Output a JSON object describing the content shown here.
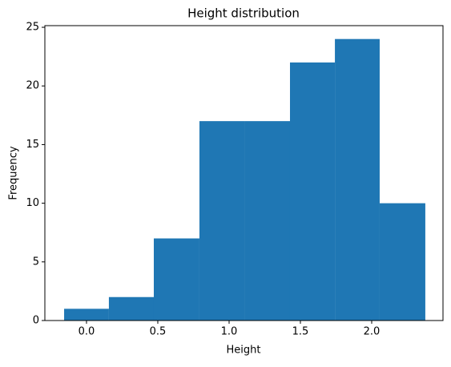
{
  "chart_data": {
    "type": "histogram",
    "title": "Height distribution",
    "x_label": "Height",
    "y_label": "Frequency",
    "bins": [
      -0.157,
      0.157,
      0.472,
      0.792,
      1.107,
      1.427,
      1.742,
      2.056,
      2.376
    ],
    "values": [
      1,
      2,
      7,
      17,
      17,
      22,
      24,
      10
    ],
    "color": "#1f77b4",
    "xlim": [
      -0.292,
      2.5
    ],
    "xticks": [
      {
        "value": 0,
        "label": "0.0"
      },
      0.5,
      {
        "value": 1,
        "label": "1.0"
      },
      1.5,
      {
        "value": 2,
        "label": "2.0"
      }
    ],
    "ylim": [
      0,
      25.14
    ],
    "yticks": [
      0,
      5,
      10,
      15,
      20,
      25
    ]
  }
}
